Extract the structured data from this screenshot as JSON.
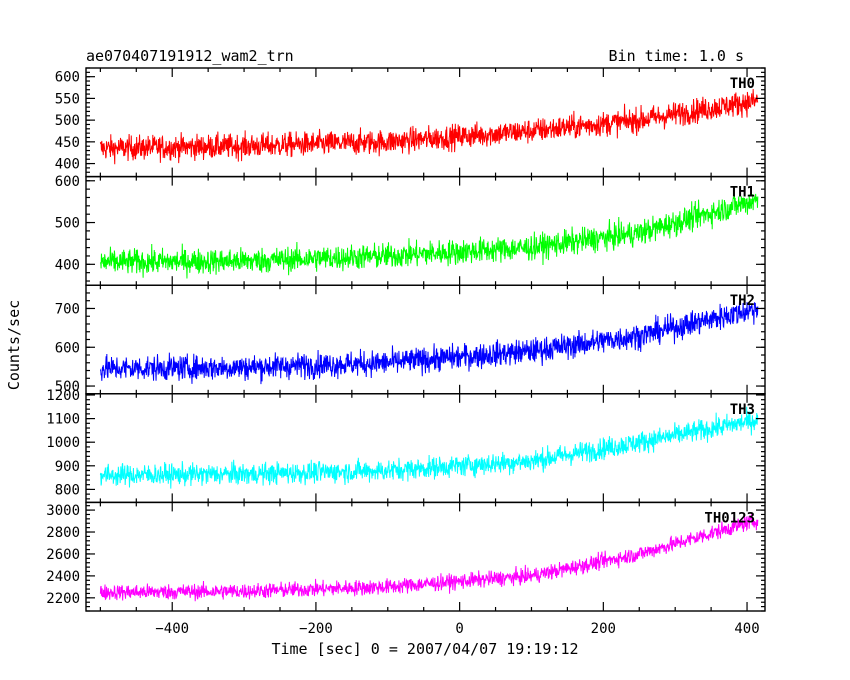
{
  "header": {
    "title": "ae070407191912_wam2_trn",
    "bin_time": "Bin time: 1.0 s"
  },
  "chart_data": {
    "type": "line",
    "title": "ae070407191912_wam2_trn",
    "xlabel": "Time [sec] 0 = 2007/04/07 19:19:12",
    "ylabel": "Counts/sec",
    "xlim": [
      -520,
      425
    ],
    "x_range": [
      -500,
      415
    ],
    "x_ticks": [
      -400,
      -200,
      0,
      200,
      400
    ],
    "x_tick_labels": [
      "−400",
      "−200",
      "0",
      "200",
      "400"
    ],
    "grid": false,
    "series": [
      {
        "name": "TH0",
        "color": "#ff0000",
        "ylim": [
          370,
          620
        ],
        "y_ticks": [
          400,
          450,
          500,
          550,
          600
        ],
        "y_tick_labels": [
          "400",
          "450",
          "500",
          "550",
          "600"
        ],
        "trend": [
          [
            -500,
            435
          ],
          [
            -300,
            440
          ],
          [
            -100,
            450
          ],
          [
            100,
            475
          ],
          [
            250,
            500
          ],
          [
            415,
            545
          ]
        ],
        "noise": 28
      },
      {
        "name": "TH1",
        "color": "#00ff00",
        "ylim": [
          350,
          610
        ],
        "y_ticks": [
          400,
          500,
          600
        ],
        "y_tick_labels": [
          "400",
          "500",
          "600"
        ],
        "trend": [
          [
            -500,
            405
          ],
          [
            -300,
            408
          ],
          [
            -100,
            420
          ],
          [
            100,
            440
          ],
          [
            250,
            475
          ],
          [
            415,
            555
          ]
        ],
        "noise": 30
      },
      {
        "name": "TH2",
        "color": "#0000ff",
        "ylim": [
          480,
          760
        ],
        "y_ticks": [
          500,
          600,
          700
        ],
        "y_tick_labels": [
          "500",
          "600",
          "700"
        ],
        "trend": [
          [
            -500,
            545
          ],
          [
            -300,
            548
          ],
          [
            -100,
            560
          ],
          [
            100,
            590
          ],
          [
            250,
            630
          ],
          [
            415,
            700
          ]
        ],
        "noise": 32
      },
      {
        "name": "TH3",
        "color": "#00ffff",
        "ylim": [
          745,
          1205
        ],
        "y_ticks": [
          800,
          900,
          1000,
          1100,
          1200
        ],
        "y_tick_labels": [
          "800",
          "900",
          "1000",
          "1100",
          "1200"
        ],
        "trend": [
          [
            -500,
            860
          ],
          [
            -300,
            865
          ],
          [
            -100,
            880
          ],
          [
            100,
            920
          ],
          [
            250,
            1000
          ],
          [
            415,
            1095
          ]
        ],
        "noise": 45
      },
      {
        "name": "TH0123",
        "color": "#ff00ff",
        "ylim": [
          2080,
          3070
        ],
        "y_ticks": [
          2200,
          2400,
          2600,
          2800,
          3000
        ],
        "y_tick_labels": [
          "2200",
          "2400",
          "2600",
          "2800",
          "3000"
        ],
        "trend": [
          [
            -500,
            2250
          ],
          [
            -300,
            2260
          ],
          [
            -100,
            2300
          ],
          [
            100,
            2400
          ],
          [
            250,
            2600
          ],
          [
            415,
            2910
          ]
        ],
        "noise": 70
      }
    ]
  }
}
